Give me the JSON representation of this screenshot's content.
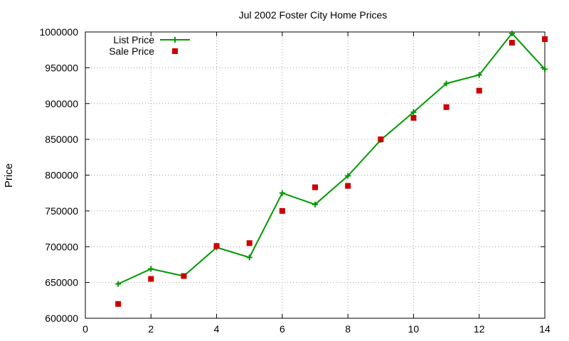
{
  "chart_data": {
    "type": "line",
    "title": "Jul 2002 Foster City Home Prices",
    "xlabel": "",
    "ylabel": "Price",
    "xlim": [
      0,
      14
    ],
    "ylim": [
      600000,
      1000000
    ],
    "xticks": [
      0,
      2,
      4,
      6,
      8,
      10,
      12,
      14
    ],
    "yticks": [
      600000,
      650000,
      700000,
      750000,
      800000,
      850000,
      900000,
      950000,
      1000000
    ],
    "grid": true,
    "legend_position": "top-left",
    "series": [
      {
        "name": "List Price",
        "style": "lines+points",
        "marker": "plus",
        "color": "#009900",
        "x": [
          1,
          2,
          3,
          4,
          5,
          6,
          7,
          8,
          9,
          10,
          11,
          12,
          13,
          14
        ],
        "y": [
          648000,
          669000,
          659000,
          699000,
          685000,
          775000,
          759000,
          799000,
          849000,
          888000,
          928000,
          940000,
          998000,
          948000
        ]
      },
      {
        "name": "Sale Price",
        "style": "points",
        "marker": "square",
        "color": "#cc0000",
        "x": [
          1,
          2,
          3,
          4,
          5,
          6,
          7,
          8,
          9,
          10,
          11,
          12,
          13,
          14
        ],
        "y": [
          620000,
          655000,
          659000,
          701000,
          705000,
          750000,
          783000,
          785000,
          850000,
          880000,
          895000,
          918000,
          985000,
          990000
        ]
      }
    ]
  }
}
